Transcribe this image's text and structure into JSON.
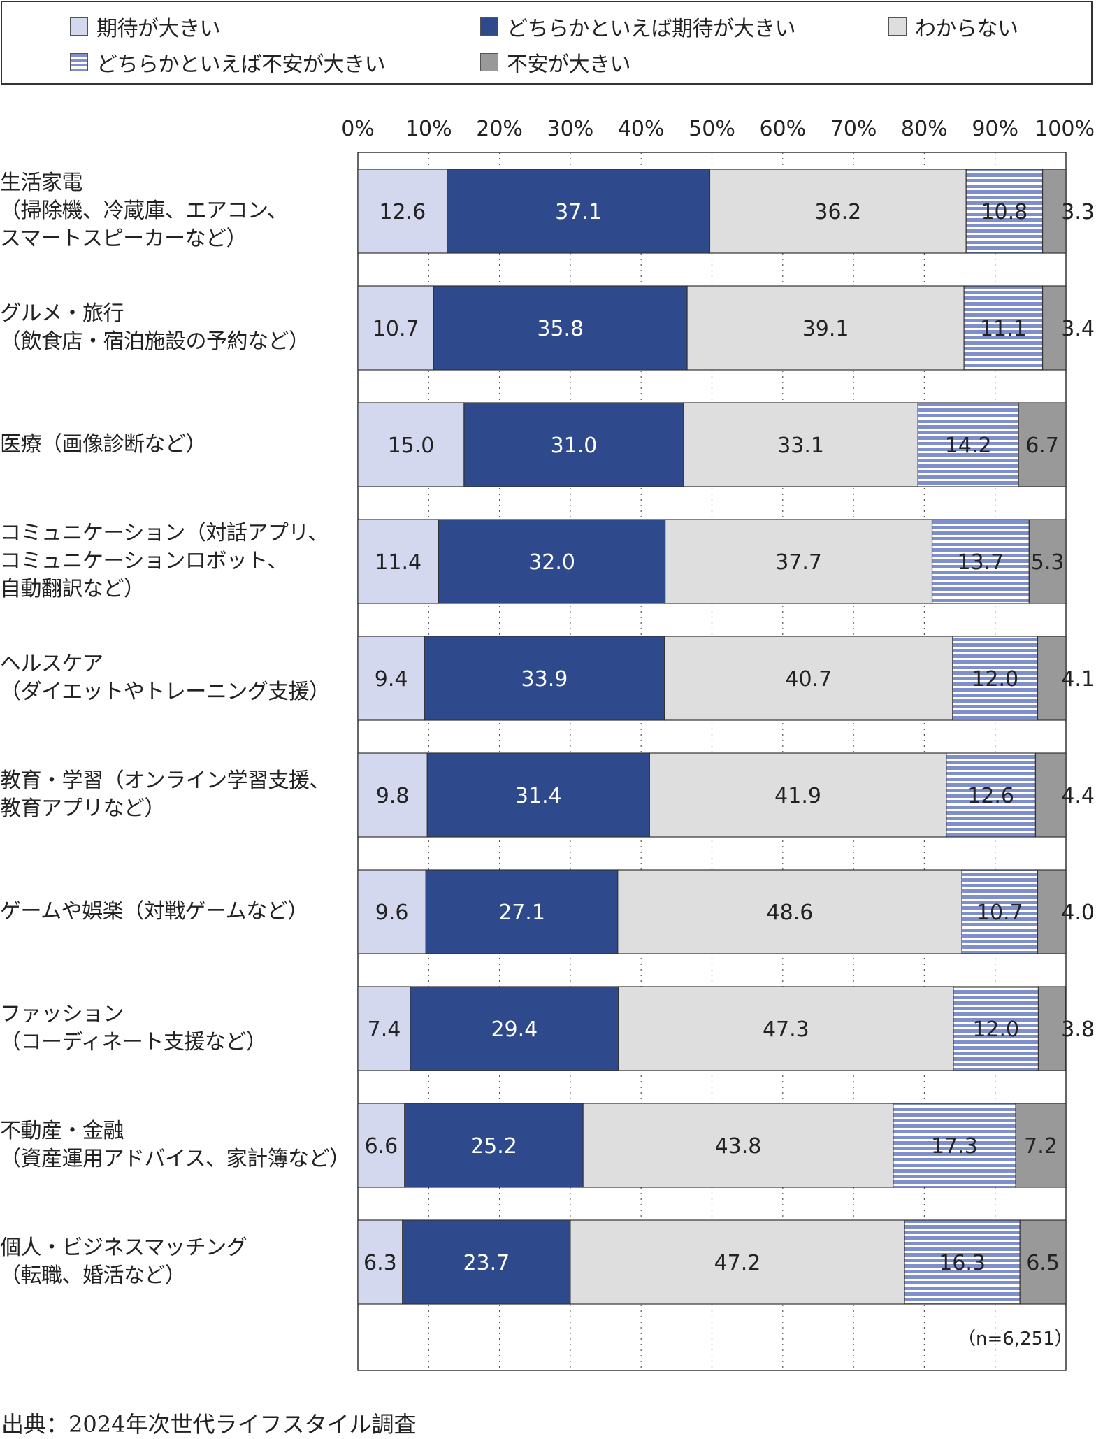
{
  "chart_data": {
    "type": "bar",
    "orientation": "horizontal",
    "stacked": true,
    "percent": true,
    "xlim": [
      0,
      100
    ],
    "x_ticks": [
      "0%",
      "10%",
      "20%",
      "30%",
      "40%",
      "50%",
      "60%",
      "70%",
      "80%",
      "90%",
      "100%"
    ],
    "x_tick_values": [
      0,
      10,
      20,
      30,
      40,
      50,
      60,
      70,
      80,
      90,
      100
    ],
    "grid": "vertical dotted",
    "legend_position": "top",
    "categories": [
      [
        "生活家電",
        "（掃除機、冷蔵庫、エアコン、",
        "スマートスピーカーなど）"
      ],
      [
        "グルメ・旅行",
        "（飲食店・宿泊施設の予約など）"
      ],
      [
        "医療（画像診断など）"
      ],
      [
        "コミュニケーション（対話アプリ、",
        "コミュニケーションロボット、",
        "自動翻訳など）"
      ],
      [
        "ヘルスケア",
        "（ダイエットやトレーニング支援）"
      ],
      [
        "教育・学習（オンライン学習支援、",
        "教育アプリなど）"
      ],
      [
        "ゲームや娯楽（対戦ゲームなど）"
      ],
      [
        "ファッション",
        "（コーディネート支援など）"
      ],
      [
        "不動産・金融",
        "（資産運用アドバイス、家計簿など）"
      ],
      [
        "個人・ビジネスマッチング",
        "（転職、婚活など）"
      ]
    ],
    "series": [
      {
        "name": "期待が大きい",
        "color": "#d4d8ee",
        "pattern": "solid",
        "values": [
          12.6,
          10.7,
          15.0,
          11.4,
          9.4,
          9.8,
          9.6,
          7.4,
          6.6,
          6.3
        ],
        "labels": [
          "12.6",
          "10.7",
          "15.0",
          "11.4",
          "9.4",
          "9.8",
          "9.6",
          "7.4",
          "6.6",
          "6.3"
        ]
      },
      {
        "name": "どちらかといえば期待が大きい",
        "color": "#2e4a8c",
        "pattern": "solid",
        "values": [
          37.1,
          35.8,
          31.0,
          32.0,
          33.9,
          31.4,
          27.1,
          29.4,
          25.2,
          23.7
        ],
        "labels": [
          "37.1",
          "35.8",
          "31.0",
          "32.0",
          "33.9",
          "31.4",
          "27.1",
          "29.4",
          "25.2",
          "23.7"
        ]
      },
      {
        "name": "わからない",
        "color": "#dedede",
        "pattern": "solid",
        "values": [
          36.2,
          39.1,
          33.1,
          37.7,
          40.7,
          41.9,
          48.6,
          47.3,
          43.8,
          47.2
        ],
        "labels": [
          "36.2",
          "39.1",
          "33.1",
          "37.7",
          "40.7",
          "41.9",
          "48.6",
          "47.3",
          "43.8",
          "47.2"
        ]
      },
      {
        "name": "どちらかといえば不安が大きい",
        "color": "#7f8fcc",
        "pattern": "horizontal-stripes",
        "values": [
          10.8,
          11.1,
          14.2,
          13.7,
          12.0,
          12.6,
          10.7,
          12.0,
          17.3,
          16.3
        ],
        "labels": [
          "10.8",
          "11.1",
          "14.2",
          "13.7",
          "12.0",
          "12.6",
          "10.7",
          "12.0",
          "17.3",
          "16.3"
        ]
      },
      {
        "name": "不安が大きい",
        "color": "#999999",
        "pattern": "solid",
        "values": [
          3.3,
          3.4,
          6.7,
          5.3,
          4.1,
          4.4,
          4.0,
          3.8,
          7.2,
          6.5
        ],
        "labels": [
          "3.3",
          "3.4",
          "6.7",
          "5.3",
          "4.1",
          "4.4",
          "4.0",
          "3.8",
          "7.2",
          "6.5"
        ]
      }
    ],
    "sample_note": "（n=6,251）"
  },
  "source": "出典：2024年次世代ライフスタイル調査"
}
